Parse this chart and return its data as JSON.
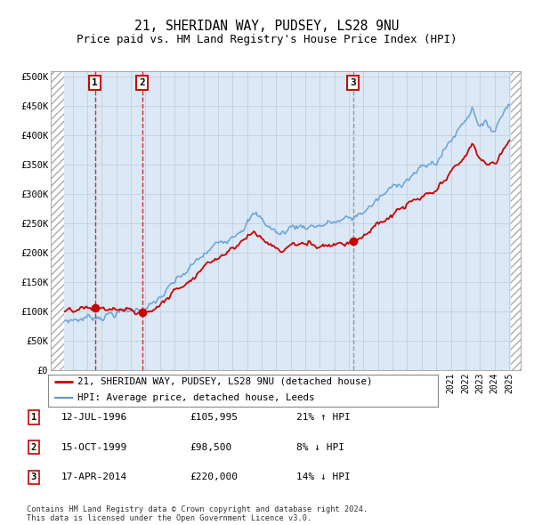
{
  "title": "21, SHERIDAN WAY, PUDSEY, LS28 9NU",
  "subtitle": "Price paid vs. HM Land Registry's House Price Index (HPI)",
  "title_fontsize": 10.5,
  "subtitle_fontsize": 9,
  "legend_line1": "21, SHERIDAN WAY, PUDSEY, LS28 9NU (detached house)",
  "legend_line2": "HPI: Average price, detached house, Leeds",
  "table_rows": [
    {
      "num": "1",
      "date": "12-JUL-1996",
      "price": "£105,995",
      "pct": "21% ↑ HPI"
    },
    {
      "num": "2",
      "date": "15-OCT-1999",
      "price": "£98,500",
      "pct": "8% ↓ HPI"
    },
    {
      "num": "3",
      "date": "17-APR-2014",
      "price": "£220,000",
      "pct": "14% ↓ HPI"
    }
  ],
  "footnote": "Contains HM Land Registry data © Crown copyright and database right 2024.\nThis data is licensed under the Open Government Licence v3.0.",
  "hpi_color": "#5b9bd5",
  "price_color": "#cc0000",
  "dot_color": "#cc0000",
  "vline_color_red": "#cc0000",
  "vline_color_gray": "#888888",
  "bg_color": "#dbe8f5",
  "ylim": [
    0,
    510000
  ],
  "yticks": [
    0,
    50000,
    100000,
    150000,
    200000,
    250000,
    300000,
    350000,
    400000,
    450000,
    500000
  ],
  "sale_dates": [
    1996.54,
    1999.79,
    2014.29
  ],
  "sale_prices": [
    105995,
    98500,
    220000
  ],
  "sale_labels": [
    "1",
    "2",
    "3"
  ]
}
